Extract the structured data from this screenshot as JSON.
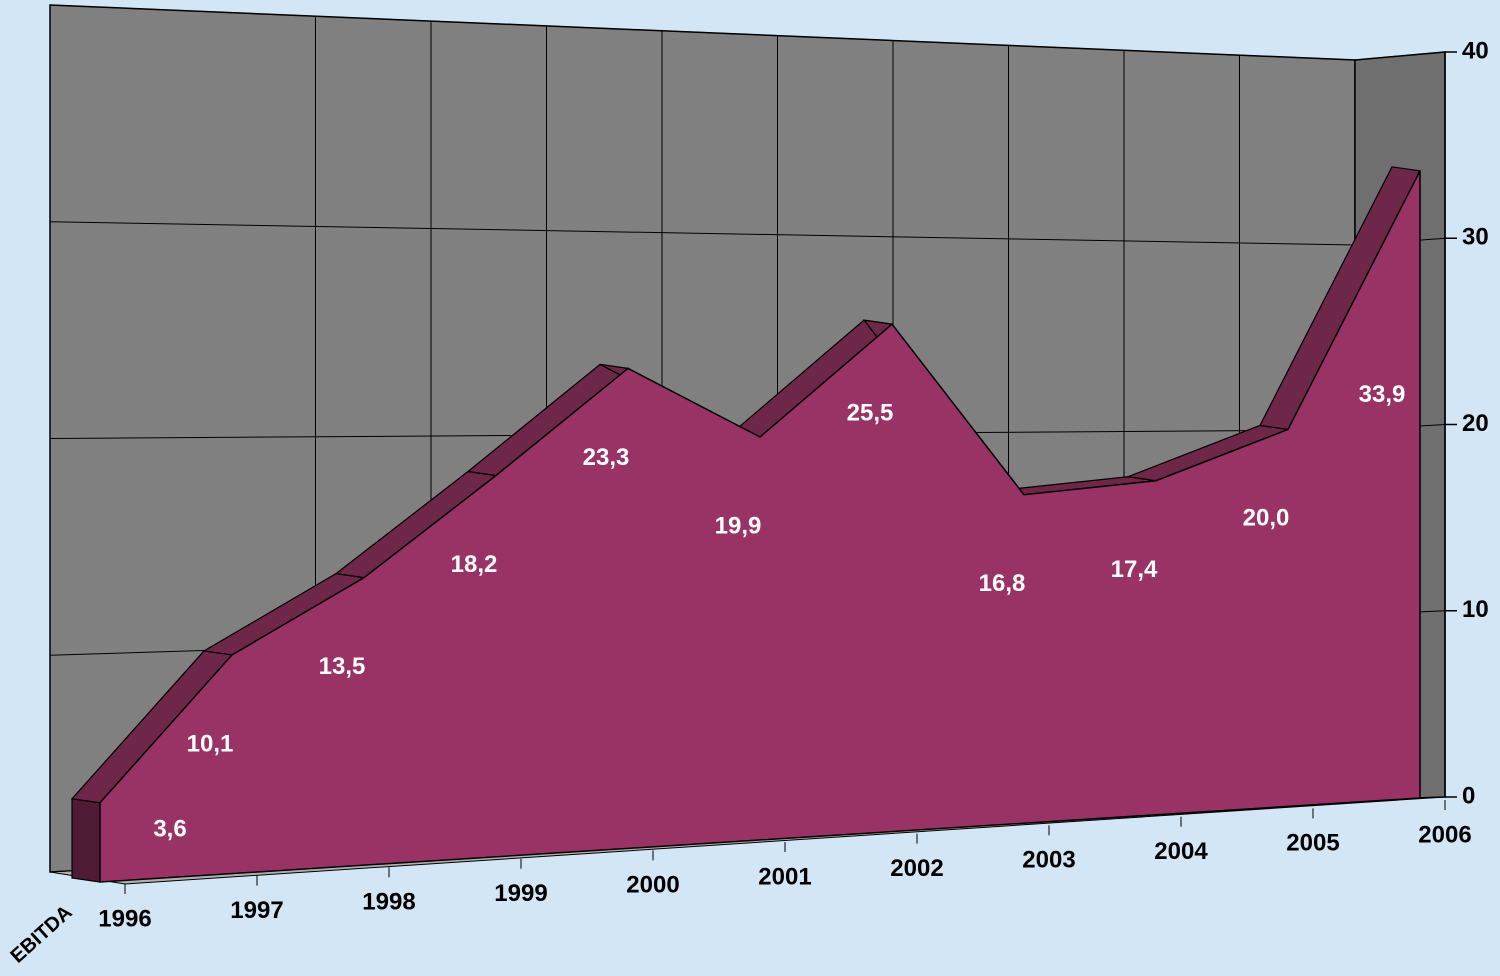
{
  "chart_data": {
    "type": "area",
    "categories": [
      "1996",
      "1997",
      "1998",
      "1999",
      "2000",
      "2001",
      "2002",
      "2003",
      "2004",
      "2005",
      "2006"
    ],
    "series": [
      {
        "name": "EBITDA",
        "color": "#993366",
        "values": [
          3.6,
          10.1,
          13.5,
          18.2,
          23.3,
          19.9,
          25.5,
          16.8,
          17.4,
          20.0,
          33.9
        ],
        "value_labels": [
          "3,6",
          "10,1",
          "13,5",
          "18,2",
          "23,3",
          "19,9",
          "25,5",
          "16,8",
          "17,4",
          "20,0",
          "33,9"
        ]
      }
    ],
    "ylim": [
      0,
      40
    ],
    "yticks": [
      0,
      10,
      20,
      30,
      40
    ],
    "grid": true
  }
}
